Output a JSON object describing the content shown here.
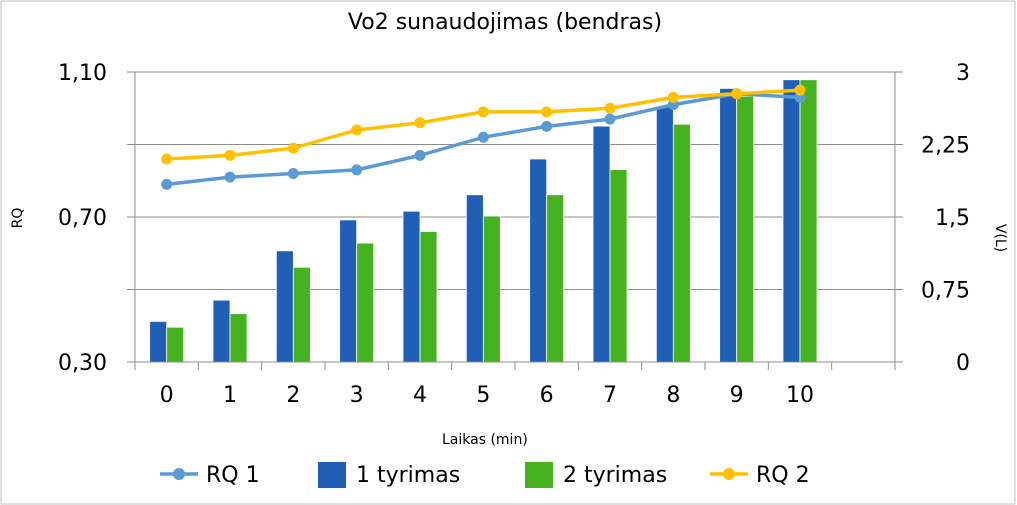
{
  "chart_data": {
    "type": "bar",
    "title": "Vo2 sunaudojimas (bendras)",
    "xlabel": "Laikas (min)",
    "ylabel_left": "RQ",
    "ylabel_right": "V(L)",
    "categories": [
      "0",
      "1",
      "2",
      "3",
      "4",
      "5",
      "6",
      "7",
      "8",
      "9",
      "10"
    ],
    "y_left": {
      "lim": [
        0.3,
        1.1
      ],
      "ticks": [
        "1,10",
        "0,70",
        "0,30"
      ]
    },
    "y_right": {
      "lim": [
        0,
        3
      ],
      "ticks": [
        "3",
        "2,25",
        "1,5",
        "0,75",
        "0"
      ]
    },
    "grid": true,
    "legend_position": "bottom",
    "series": [
      {
        "name": "RQ 1",
        "type": "line",
        "axis": "left",
        "color": "#5b9bd5",
        "values": [
          0.79,
          0.81,
          0.82,
          0.83,
          0.87,
          0.92,
          0.95,
          0.97,
          1.01,
          1.04,
          1.03
        ]
      },
      {
        "name": "1 tyrimas",
        "type": "bar",
        "axis": "right",
        "color": "#1f5fb5",
        "values": [
          0.42,
          0.64,
          1.15,
          1.47,
          1.56,
          1.73,
          2.1,
          2.44,
          2.64,
          2.83,
          2.92
        ]
      },
      {
        "name": "2 tyrimas",
        "type": "bar",
        "axis": "right",
        "color": "#45b31f",
        "values": [
          0.36,
          0.5,
          0.98,
          1.23,
          1.35,
          1.51,
          1.73,
          1.99,
          2.46,
          2.75,
          2.92
        ]
      },
      {
        "name": "RQ 2",
        "type": "line",
        "axis": "left",
        "color": "#ffc000",
        "values": [
          0.86,
          0.87,
          0.89,
          0.94,
          0.96,
          0.99,
          0.99,
          1.0,
          1.03,
          1.04,
          1.05
        ]
      }
    ]
  }
}
